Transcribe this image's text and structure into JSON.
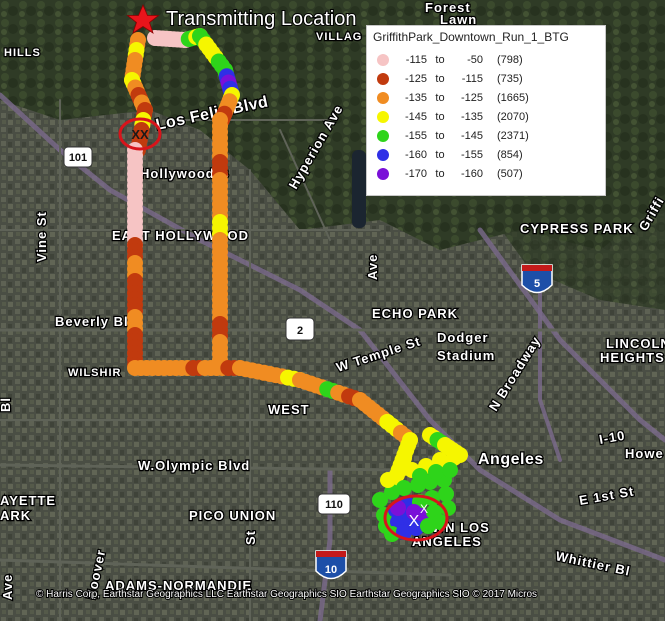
{
  "transmitter": {
    "label": "Transmitting Location",
    "color": "#e8141b"
  },
  "legend": {
    "title": "GriffithPark_Downtown_Run_1_BTG",
    "to_word": "to",
    "entries": [
      {
        "low": "-115",
        "high": "-50",
        "count": "(798)",
        "color": "#f6c4c4"
      },
      {
        "low": "-125",
        "high": "-115",
        "count": "(735)",
        "color": "#c13a0e"
      },
      {
        "low": "-135",
        "high": "-125",
        "count": "(1665)",
        "color": "#f08c22"
      },
      {
        "low": "-145",
        "high": "-135",
        "count": "(2070)",
        "color": "#f6f600"
      },
      {
        "low": "-155",
        "high": "-145",
        "count": "(2371)",
        "color": "#2ed41a"
      },
      {
        "low": "-160",
        "high": "-155",
        "count": "(854)",
        "color": "#2f2fe6"
      },
      {
        "low": "-170",
        "high": "-160",
        "count": "(507)",
        "color": "#7a10d8"
      }
    ]
  },
  "markers": {
    "xx_label": "XX",
    "x_label": "X",
    "circle_color": "#d8141b"
  },
  "places": {
    "forest": "Forest",
    "lawn": "Lawn",
    "village": "VILLAG",
    "hills": "HILLS",
    "los_feliz": "Los Feliz Blvd",
    "hyperion": "Hyperion Ave",
    "hollywood": "Hollywood B",
    "east_hollywood": "EAST HOLLYWOOD",
    "vine": "Vine St",
    "beverly": "Beverly Bl",
    "wilshire": "WILSHIR",
    "cypress": "CYPRESS PARK",
    "echo": "ECHO PARK",
    "dodger": "Dodger",
    "stadium": "Stadium",
    "lincoln": "LINCOLN",
    "heights": "HEIGHTS",
    "temple": "W Temple St",
    "broadway": "N Broadway",
    "west": "WEST",
    "olympic": "W.Olympic Blvd",
    "pico": "PICO UNION",
    "angeles": "Angeles",
    "town_los": "TOWN LOS",
    "angeles_caps": "ANGELES",
    "i10": "I-10",
    "howe": "Howe",
    "e1st": "E 1st St",
    "whittier": "Whittier Bl",
    "adams": "ADAMS-NORMANDIE",
    "ayette": "AYETTE",
    "ark": "ARK",
    "griffi": "Griffi",
    "hoover": "Hoover",
    "st_lbl": "St",
    "ave_lbl": "Ave",
    "bl": "Bl",
    "ave2": "Ave"
  },
  "shields": {
    "i101": "101",
    "i5": "5",
    "r2": "2",
    "i110": "110",
    "i10": "10"
  },
  "credits": "© Harris Corp, Earthstar Geographics LLC Earthstar Geographics SIO Earthstar Geographics SIO © 2017 Micros"
}
